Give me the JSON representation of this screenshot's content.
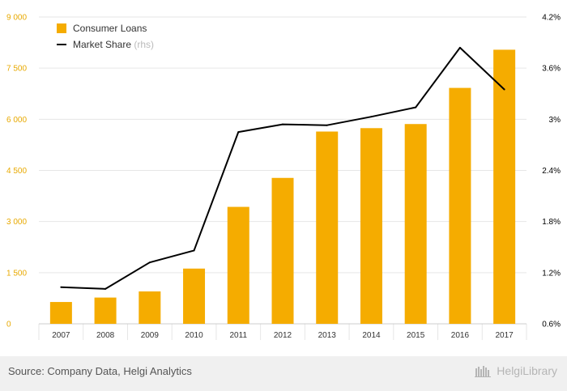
{
  "chart_data": {
    "type": "bar",
    "categories": [
      "2007",
      "2008",
      "2009",
      "2010",
      "2011",
      "2012",
      "2013",
      "2014",
      "2015",
      "2016",
      "2017"
    ],
    "series": [
      {
        "name": "Consumer Loans",
        "type": "bar",
        "axis": "left",
        "color": "#f5ac00",
        "values": [
          640,
          770,
          950,
          1620,
          3430,
          4280,
          5640,
          5740,
          5860,
          6920,
          8040
        ]
      },
      {
        "name": "Market Share",
        "legend_suffix": "(rhs)",
        "type": "line",
        "axis": "right",
        "color": "#000000",
        "values": [
          1.03,
          1.01,
          1.32,
          1.46,
          2.85,
          2.94,
          2.93,
          3.03,
          3.14,
          3.84,
          3.35
        ]
      }
    ],
    "y_left": {
      "ticks": [
        0,
        1500,
        3000,
        4500,
        6000,
        7500,
        9000
      ],
      "tick_labels": [
        "0",
        "1 500",
        "3 000",
        "4 500",
        "6 000",
        "7 500",
        "9 000"
      ],
      "ylim": [
        0,
        9000
      ],
      "color": "#e8a900"
    },
    "y_right": {
      "ticks": [
        0.6,
        1.2,
        1.8,
        2.4,
        3.0,
        3.6,
        4.2
      ],
      "tick_labels": [
        "0.6%",
        "1.2%",
        "1.8%",
        "2.4%",
        "3%",
        "3.6%",
        "4.2%"
      ],
      "ylim": [
        0.6,
        4.2
      ],
      "color": "#000000"
    },
    "grid": true,
    "legend_position": "top-left"
  },
  "footer": {
    "source": "Source: Company Data, Helgi Analytics",
    "logo_text": "HelgiLibrary"
  }
}
